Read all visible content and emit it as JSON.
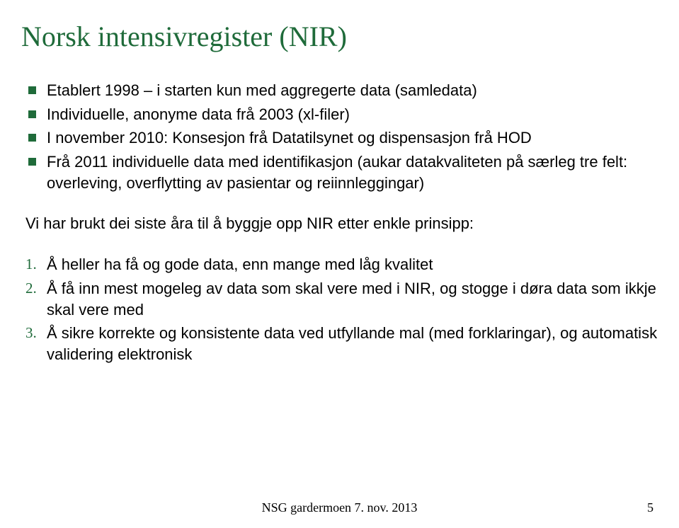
{
  "colors": {
    "accent": "#1f6b3a",
    "text": "#000000",
    "background": "#ffffff"
  },
  "typography": {
    "title_fontfamily": "Times New Roman",
    "title_fontsize_pt": 30,
    "body_fontfamily": "Arial",
    "body_fontsize_pt": 17,
    "footer_fontsize_pt": 14
  },
  "title": "Norsk intensivregister (NIR)",
  "bullets": [
    "Etablert 1998 – i starten kun med aggregerte data (samledata)",
    "Individuelle, anonyme data frå 2003 (xl-filer)",
    "I november 2010: Konsesjon frå Datatilsynet og dispensasjon frå HOD",
    "Frå 2011 individuelle data med identifikasjon (aukar datakvaliteten på særleg tre felt: overleving, overflytting av pasientar og reiinnleggingar)"
  ],
  "intro": "Vi har brukt dei siste åra til å byggje opp NIR etter enkle prinsipp:",
  "numbered": [
    {
      "n": "1.",
      "text": "Å heller ha få og gode data, enn mange med låg kvalitet"
    },
    {
      "n": "2.",
      "text": "Å få inn mest mogeleg av data som skal vere med i NIR, og stogge i døra data som ikkje skal vere med"
    },
    {
      "n": "3.",
      "text": "Å sikre korrekte og konsistente data ved utfyllande mal (med forklaringar), og automatisk validering elektronisk"
    }
  ],
  "footer": "NSG gardermoen 7. nov. 2013",
  "page_number": "5"
}
